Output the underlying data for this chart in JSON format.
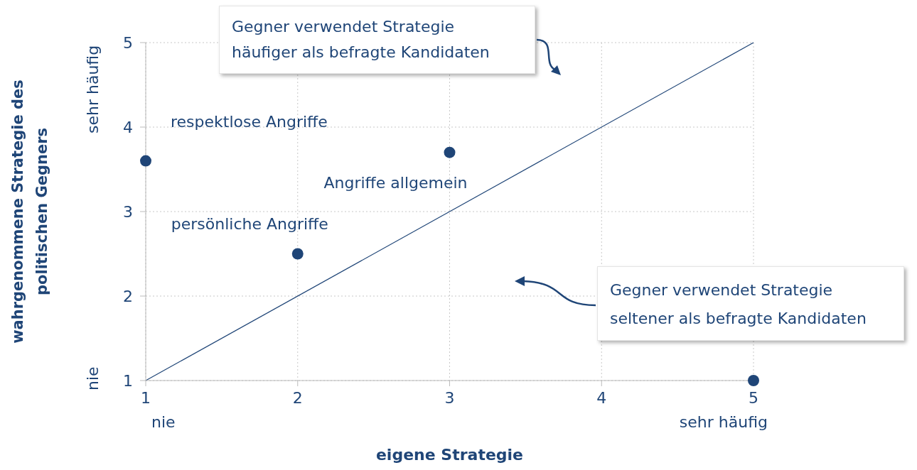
{
  "chart_data": {
    "type": "scatter",
    "xlabel": "eigene Strategie",
    "ylabel": "wahrgenommene Strategie des politischen Gegners",
    "xlim": [
      1,
      5
    ],
    "ylim": [
      1,
      5
    ],
    "xticks": [
      1,
      2,
      3,
      4,
      5
    ],
    "yticks": [
      1,
      2,
      3,
      4,
      5
    ],
    "grid": true,
    "marker": "circle",
    "series": [
      {
        "type": "line",
        "color": "#1f4577",
        "x": [
          1,
          5
        ],
        "values": [
          1,
          5
        ],
        "marker": "none",
        "line_style": "solid"
      },
      {
        "color": "#1f4577",
        "x": [
          1,
          2,
          3,
          5
        ],
        "values": [
          3.6,
          2.5,
          3.7,
          1
        ]
      }
    ],
    "annotations": [
      {
        "text": "respektlose Angriffe",
        "x": 1,
        "y": 3.6
      },
      {
        "text": "persönliche Angriffe",
        "x": 2,
        "y": 2.5
      },
      {
        "text": "Angriffe allgemein",
        "x": 3,
        "y": 3.7
      },
      "nie",
      "sehr häufig",
      "nie",
      "sehr häufig",
      "Gegner verwendet Strategie häufiger als befragte Kandidaten",
      "Gegner verwendet Strategie seltener als befragte Kandidaten"
    ]
  }
}
